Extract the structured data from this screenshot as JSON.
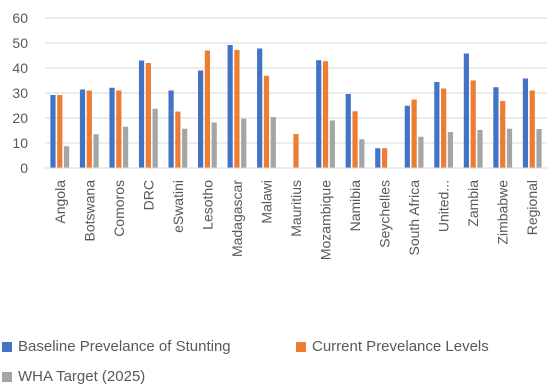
{
  "chart_data": {
    "type": "bar",
    "title": "",
    "xlabel": "",
    "ylabel": "",
    "ylim": [
      0,
      60
    ],
    "yticks": [
      "0",
      "10",
      "20",
      "30",
      "40",
      "50",
      "60"
    ],
    "grid": true,
    "legend_position": "bottom",
    "categories": [
      "Angola",
      "Botswana",
      "Comoros",
      "DRC",
      "eSwatini",
      "Lesotho",
      "Madagascar",
      "Malawi",
      "Mauritius",
      "Mozambique",
      "Namibia",
      "Seychelles",
      "South Africa",
      "United...",
      "Zambia",
      "Zimbabwe",
      "Regional"
    ],
    "series": [
      {
        "name": "Baseline Prevelance of Stunting",
        "color": "#4472C4",
        "values": [
          29.2,
          31.4,
          32.1,
          43,
          31,
          39,
          49.2,
          47.8,
          null,
          43.1,
          29.6,
          7.9,
          24.9,
          34.4,
          45.8,
          32.3,
          35.8
        ]
      },
      {
        "name": "Current Prevelance Levels",
        "color": "#ED7D31",
        "values": [
          29.2,
          31,
          31,
          42,
          22.6,
          47,
          47.2,
          36.9,
          13.6,
          42.7,
          22.7,
          7.9,
          27.4,
          31.8,
          35,
          26.8,
          31
        ]
      },
      {
        "name": "WHA Target (2025)",
        "color": "#A5A5A5",
        "values": [
          8.7,
          13.5,
          16.5,
          23.7,
          15.7,
          18.2,
          19.7,
          20.4,
          null,
          19,
          11.5,
          null,
          12.5,
          14.4,
          15.2,
          15.7,
          15.6
        ]
      }
    ]
  }
}
